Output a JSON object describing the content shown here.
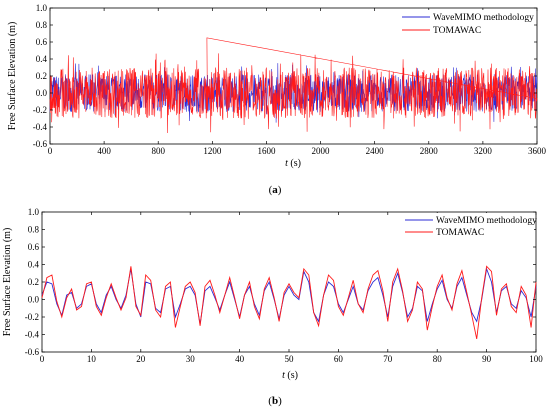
{
  "chart_data": [
    {
      "type": "line",
      "panel_label": "(a)",
      "xlabel_var": "t",
      "xlabel_unit": " (s)",
      "ylabel": "Free Surface Elevation (m)",
      "xlim": [
        0,
        3600
      ],
      "ylim": [
        -0.6,
        1.0
      ],
      "xticks": [
        0,
        400,
        800,
        1200,
        1600,
        2000,
        2400,
        2800,
        3200,
        3600
      ],
      "yticks": [
        -0.6,
        -0.4,
        -0.2,
        0.0,
        0.2,
        0.4,
        0.6,
        0.8,
        1.0
      ],
      "legend_position": "top-right",
      "series": [
        {
          "name": "WaveMIMO methodology",
          "color": "#2b2bd6",
          "amplitude_range": [
            -0.35,
            0.4
          ],
          "description_values": {
            "mean": 0.0
          }
        },
        {
          "name": "TOMAWAC",
          "color": "#ff1a1a",
          "amplitude_range": [
            -0.55,
            0.65
          ],
          "description_values": {
            "mean": 0.0,
            "max_peak_x": 1160,
            "max_peak_y": 0.65
          }
        }
      ]
    },
    {
      "type": "line",
      "panel_label": "(b)",
      "xlabel_var": "t",
      "xlabel_unit": " (s)",
      "ylabel": "Free Surface Elevation (m)",
      "xlim": [
        0,
        100
      ],
      "ylim": [
        -0.6,
        1.0
      ],
      "xticks": [
        0,
        10,
        20,
        30,
        40,
        50,
        60,
        70,
        80,
        90,
        100
      ],
      "yticks": [
        -0.6,
        -0.4,
        -0.2,
        0.0,
        0.2,
        0.4,
        0.6,
        0.8,
        1.0
      ],
      "legend_position": "top-right",
      "x": [
        0,
        1,
        2,
        3,
        4,
        5,
        6,
        7,
        8,
        9,
        10,
        11,
        12,
        13,
        14,
        15,
        16,
        17,
        18,
        19,
        20,
        21,
        22,
        23,
        24,
        25,
        26,
        27,
        28,
        29,
        30,
        31,
        32,
        33,
        34,
        35,
        36,
        37,
        38,
        39,
        40,
        41,
        42,
        43,
        44,
        45,
        46,
        47,
        48,
        49,
        50,
        51,
        52,
        53,
        54,
        55,
        56,
        57,
        58,
        59,
        60,
        61,
        62,
        63,
        64,
        65,
        66,
        67,
        68,
        69,
        70,
        71,
        72,
        73,
        74,
        75,
        76,
        77,
        78,
        79,
        80,
        81,
        82,
        83,
        84,
        85,
        86,
        87,
        88,
        89,
        90,
        91,
        92,
        93,
        94,
        95,
        96,
        97,
        98,
        99,
        100
      ],
      "series": [
        {
          "name": "WaveMIMO methodology",
          "color": "#2b2bd6",
          "values": [
            0.05,
            0.2,
            0.18,
            -0.05,
            -0.18,
            0.05,
            0.08,
            -0.1,
            -0.05,
            0.15,
            0.18,
            -0.05,
            -0.15,
            0.05,
            0.15,
            0.0,
            -0.1,
            0.05,
            0.35,
            -0.05,
            -0.2,
            0.2,
            0.18,
            -0.1,
            -0.15,
            0.12,
            0.15,
            -0.2,
            -0.05,
            0.12,
            0.15,
            0.05,
            -0.28,
            0.1,
            0.15,
            0.02,
            -0.12,
            0.05,
            0.2,
            0.0,
            -0.2,
            0.05,
            0.15,
            -0.05,
            -0.18,
            0.1,
            0.2,
            0.0,
            -0.22,
            0.05,
            0.15,
            0.05,
            0.0,
            0.32,
            0.2,
            -0.15,
            -0.25,
            0.05,
            0.2,
            0.15,
            -0.05,
            -0.15,
            0.0,
            0.15,
            -0.05,
            -0.12,
            0.1,
            0.2,
            0.25,
            0.05,
            -0.2,
            0.15,
            0.3,
            0.08,
            -0.2,
            -0.1,
            0.15,
            0.1,
            -0.25,
            -0.05,
            0.12,
            0.22,
            0.0,
            -0.1,
            0.15,
            0.25,
            0.05,
            -0.15,
            -0.25,
            0.0,
            0.35,
            0.2,
            -0.15,
            0.1,
            0.15,
            -0.05,
            -0.1,
            0.1,
            0.02,
            -0.2,
            0.15
          ]
        },
        {
          "name": "TOMAWAC",
          "color": "#ff1a1a",
          "values": [
            0.02,
            0.25,
            0.28,
            -0.02,
            -0.2,
            0.02,
            0.12,
            -0.12,
            -0.08,
            0.18,
            0.2,
            -0.08,
            -0.18,
            0.02,
            0.18,
            0.02,
            -0.12,
            0.02,
            0.38,
            -0.08,
            -0.18,
            0.28,
            0.22,
            -0.12,
            -0.2,
            0.15,
            0.2,
            -0.32,
            -0.08,
            0.15,
            0.2,
            0.08,
            -0.3,
            0.15,
            0.22,
            0.05,
            -0.15,
            0.05,
            0.25,
            0.02,
            -0.22,
            0.05,
            0.2,
            -0.08,
            -0.22,
            0.12,
            0.25,
            0.02,
            -0.25,
            0.08,
            0.18,
            0.08,
            0.02,
            0.35,
            0.28,
            -0.15,
            -0.3,
            0.05,
            0.28,
            0.22,
            -0.08,
            -0.18,
            0.02,
            0.22,
            -0.05,
            -0.15,
            0.12,
            0.28,
            0.33,
            0.1,
            -0.25,
            0.2,
            0.35,
            0.1,
            -0.25,
            -0.12,
            0.2,
            0.12,
            -0.35,
            -0.08,
            0.15,
            0.28,
            0.02,
            -0.12,
            0.18,
            0.33,
            0.08,
            -0.18,
            -0.45,
            0.02,
            0.38,
            0.32,
            -0.18,
            0.12,
            0.18,
            -0.08,
            -0.15,
            0.15,
            0.05,
            -0.32,
            0.2
          ]
        }
      ]
    }
  ]
}
